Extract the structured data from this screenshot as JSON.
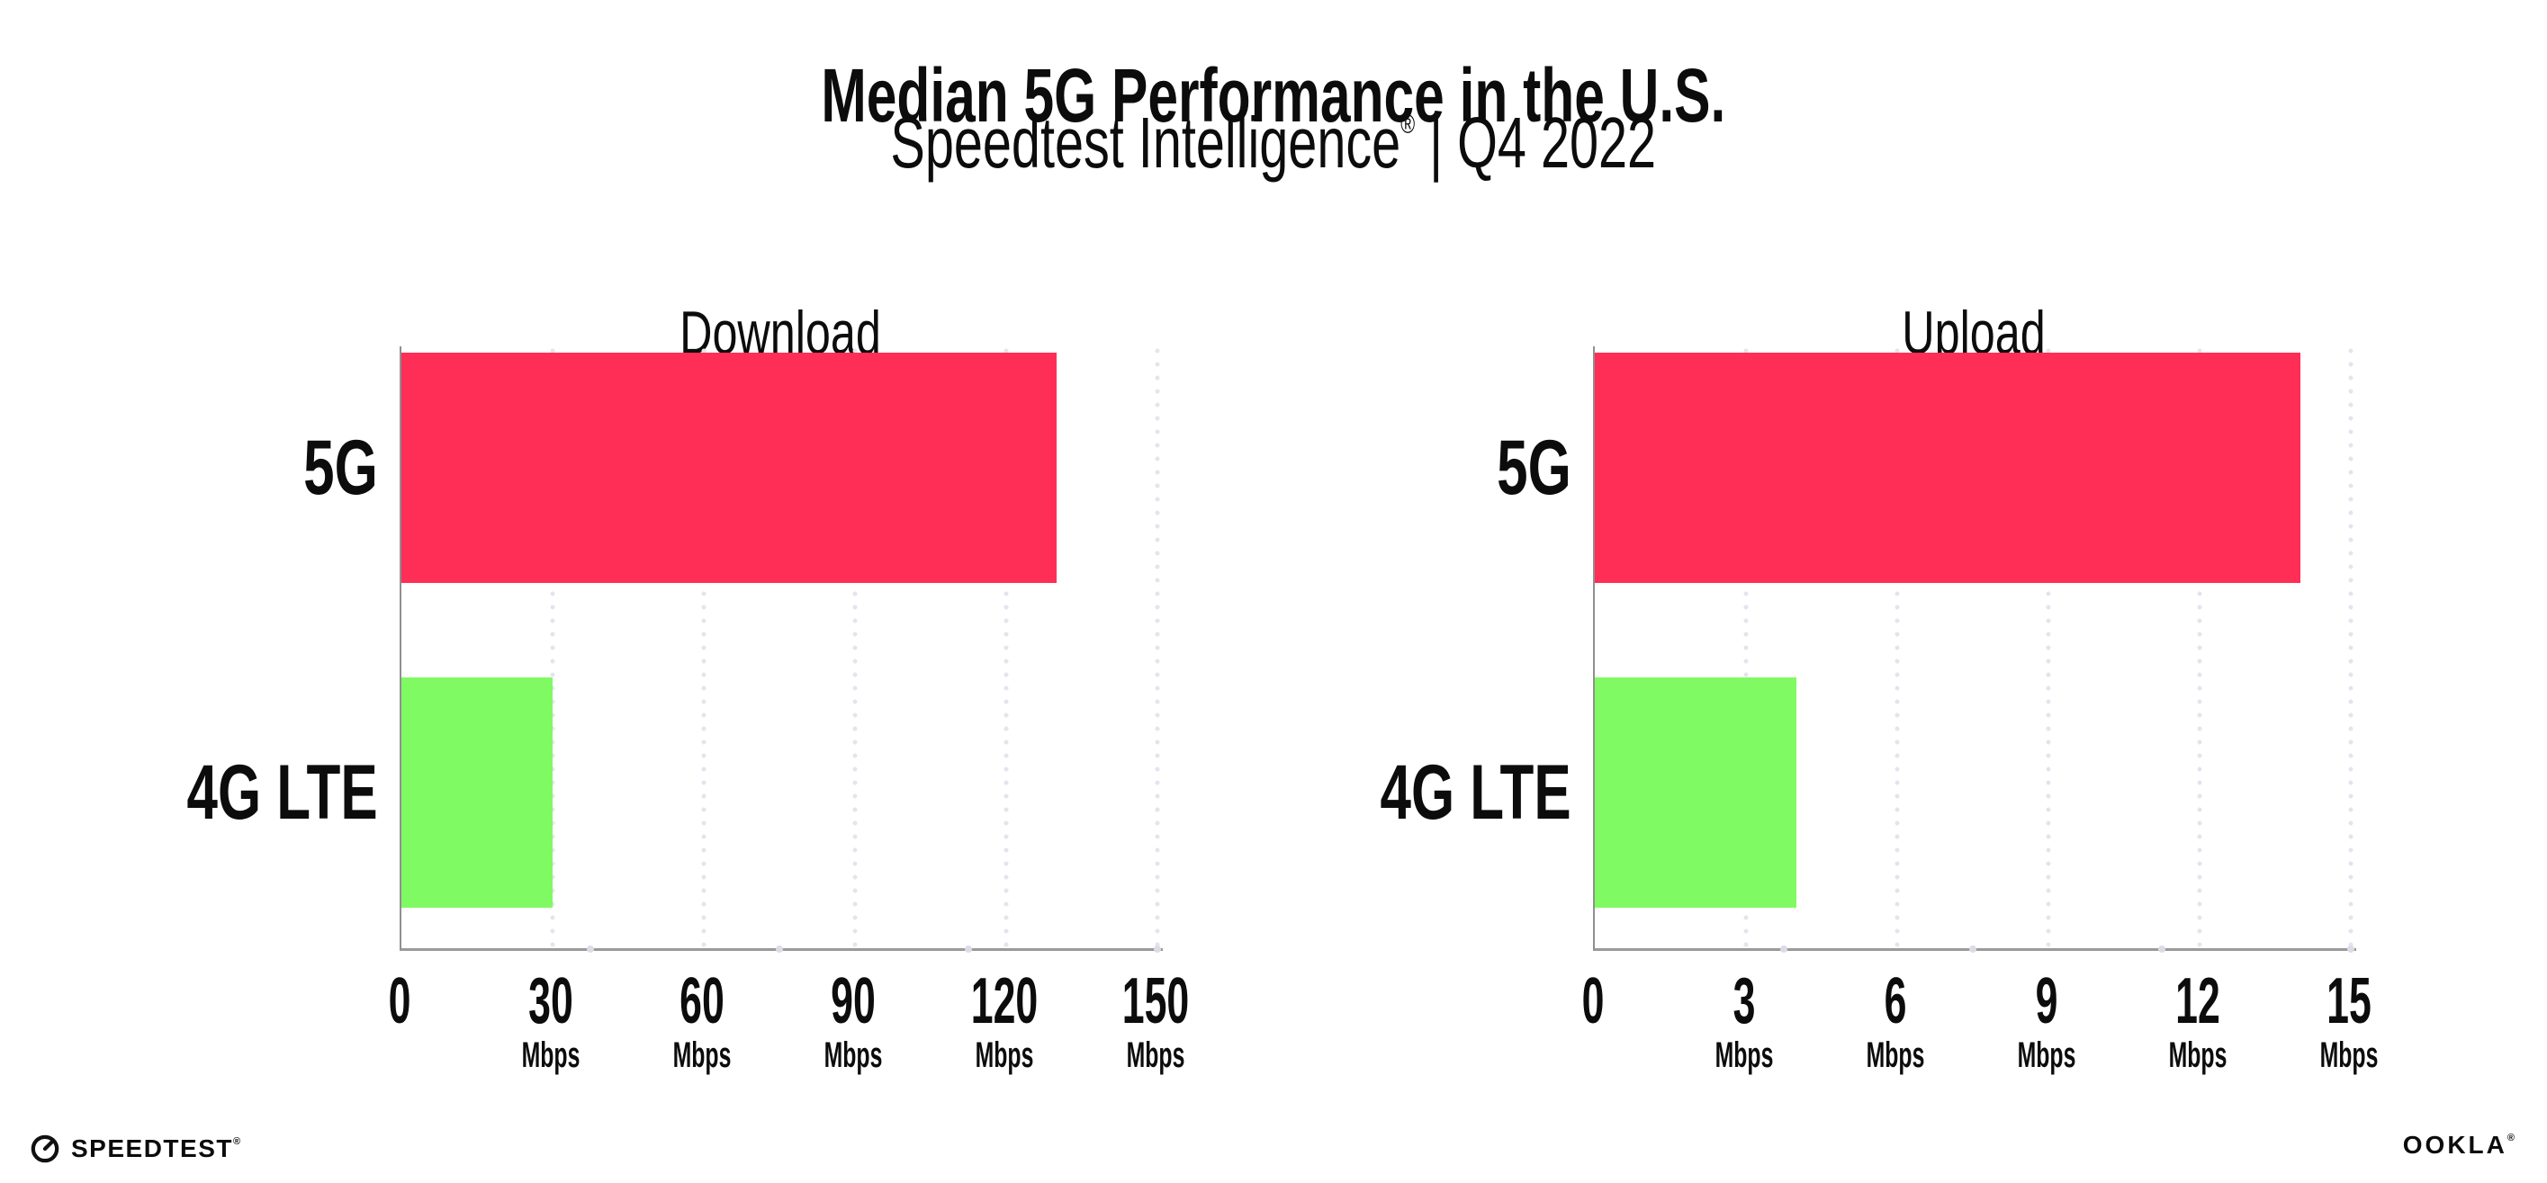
{
  "header": {
    "title": "Median 5G Performance in the U.S.",
    "subtitle_brand": "Speedtest Intelligence",
    "subtitle_reg": "®",
    "subtitle_rest": " | Q4 2022"
  },
  "footer": {
    "speedtest_icon": "gauge-icon",
    "speedtest_wordmark": "SPEEDTEST",
    "speedtest_reg": "®",
    "ookla_wordmark": "OOKLA",
    "ookla_reg": "®"
  },
  "colors": {
    "bar_5g": "#ff2e56",
    "bar_4g_lte": "#80fa62",
    "gridline": "#e4e4ee",
    "axis": "#9a9a9a",
    "text": "#0c0c0c",
    "background": "#ffffff"
  },
  "chart_data": [
    {
      "type": "bar",
      "orientation": "horizontal",
      "title": "Download",
      "categories": [
        "5G",
        "4G LTE"
      ],
      "values": [
        130,
        30
      ],
      "unit": "Mbps",
      "xlim": [
        0,
        150
      ],
      "xticks": [
        0,
        30,
        60,
        90,
        120,
        150
      ],
      "grid": "dotted-vertical",
      "legend": "none",
      "bar_colors": [
        "#ff2e56",
        "#80fa62"
      ]
    },
    {
      "type": "bar",
      "orientation": "horizontal",
      "title": "Upload",
      "categories": [
        "5G",
        "4G LTE"
      ],
      "values": [
        14,
        4
      ],
      "unit": "Mbps",
      "xlim": [
        0,
        15
      ],
      "xticks": [
        0,
        3,
        6,
        9,
        12,
        15
      ],
      "grid": "dotted-vertical",
      "legend": "none",
      "bar_colors": [
        "#ff2e56",
        "#80fa62"
      ]
    }
  ]
}
